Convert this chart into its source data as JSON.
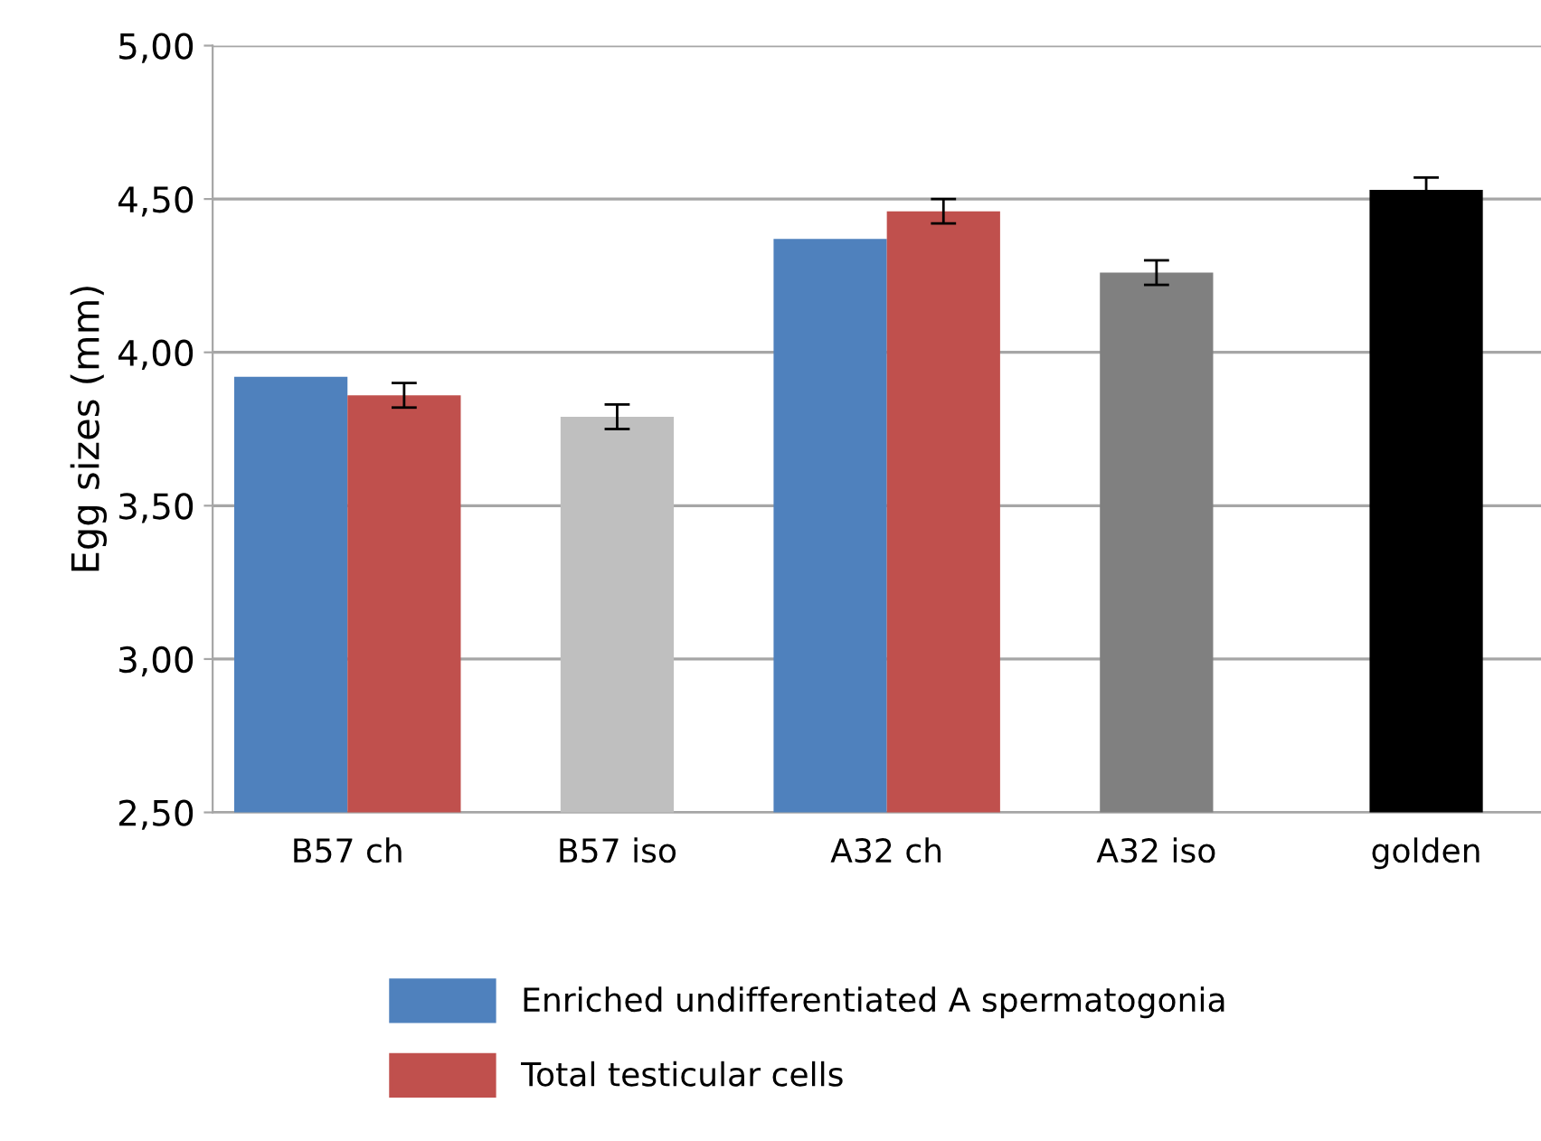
{
  "chart_data": {
    "type": "bar",
    "ylabel": "Egg sizes (mm)",
    "categories": [
      "B57 ch",
      "B57 iso",
      "A32 ch",
      "A32 iso",
      "golden"
    ],
    "series": [
      {
        "name": "Enriched undifferentiated A spermatogonia",
        "color": "#4f81bd",
        "values": [
          3.92,
          null,
          4.37,
          null,
          null
        ]
      },
      {
        "name": "Total testicular cells",
        "color": "#c0504d",
        "values": [
          3.86,
          null,
          4.46,
          null,
          null
        ],
        "errors": [
          0.04,
          null,
          0.04,
          null,
          null
        ]
      },
      {
        "colors": [
          "#bfbfbf",
          "#bfbfbf",
          "#808080",
          "#808080",
          "#000000"
        ],
        "values": [
          null,
          3.79,
          null,
          4.26,
          4.53
        ],
        "errors": [
          null,
          0.04,
          null,
          0.04,
          0.04
        ]
      }
    ],
    "ylim": [
      2.5,
      5.0
    ],
    "yticks": [
      {
        "value": 2.5,
        "label": "2,50"
      },
      {
        "value": 3.0,
        "label": "3,00"
      },
      {
        "value": 3.5,
        "label": "3,50"
      },
      {
        "value": 4.0,
        "label": "4,00"
      },
      {
        "value": 4.5,
        "label": "4,50"
      },
      {
        "value": 5.0,
        "label": "5,00"
      }
    ],
    "grid": "y",
    "legend": "bottom"
  }
}
